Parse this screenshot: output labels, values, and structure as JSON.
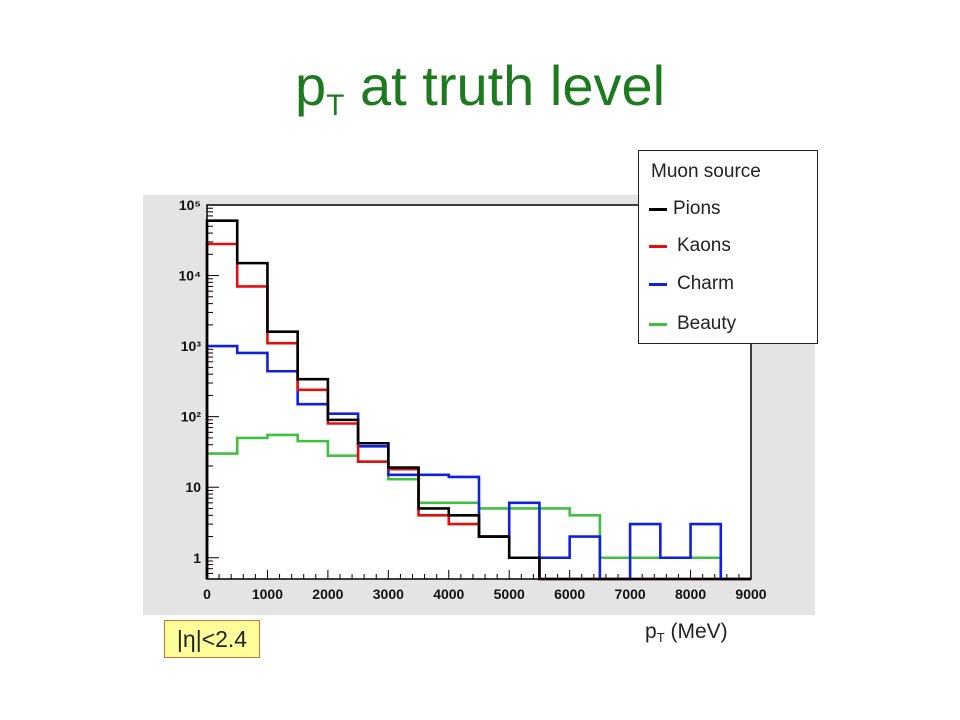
{
  "title": {
    "main": "p",
    "sub": "T",
    "rest": " at truth level"
  },
  "legend": {
    "title": "Muon source",
    "entries": [
      {
        "label": "Pions",
        "color": "#000000"
      },
      {
        "label": "Kaons",
        "color": "#e01010"
      },
      {
        "label": "Charm",
        "color": "#1020e0"
      },
      {
        "label": "Beauty",
        "color": "#40c040"
      }
    ]
  },
  "xaxis": {
    "main": "p",
    "sub": "T",
    "rest": " (MeV)"
  },
  "eta_cut": "|η|<2.4",
  "chart_data": {
    "type": "line",
    "title": "p_T at truth level",
    "xlabel": "p_T (MeV)",
    "ylabel": "",
    "xlim": [
      0,
      9000
    ],
    "ylim": [
      0.5,
      100000
    ],
    "yscale": "log",
    "grid": false,
    "legend_position": "top-right",
    "x_ticks": [
      "0",
      "1000",
      "2000",
      "3000",
      "4000",
      "5000",
      "6000",
      "7000",
      "8000",
      "9000"
    ],
    "y_ticks": [
      "1",
      "10",
      "10²",
      "10³",
      "10⁴",
      "10⁵"
    ],
    "bin_edges": [
      0,
      500,
      1000,
      1500,
      2000,
      2500,
      3000,
      3500,
      4000,
      4500,
      5000,
      5500,
      6000,
      6500,
      7000,
      7500,
      8000,
      8500,
      9000
    ],
    "series": [
      {
        "name": "Pions",
        "color": "#000000",
        "values": [
          60000,
          15000,
          1600,
          340,
          90,
          42,
          19,
          5,
          4,
          2,
          1,
          0,
          0,
          0,
          0,
          0,
          0,
          0
        ]
      },
      {
        "name": "Kaons",
        "color": "#e01010",
        "values": [
          28000,
          7000,
          1100,
          240,
          80,
          23,
          18,
          4,
          3,
          2,
          1,
          0,
          0,
          0,
          0,
          0,
          0,
          0
        ]
      },
      {
        "name": "Charm",
        "color": "#1020e0",
        "values": [
          1000,
          800,
          440,
          150,
          110,
          38,
          15,
          15,
          14,
          2,
          6,
          1,
          2,
          0,
          3,
          1,
          3,
          0
        ]
      },
      {
        "name": "Beauty",
        "color": "#40c040",
        "values": [
          30,
          50,
          55,
          45,
          28,
          23,
          13,
          6,
          6,
          5,
          5,
          5,
          4,
          1,
          1,
          1,
          1,
          0
        ]
      }
    ]
  }
}
